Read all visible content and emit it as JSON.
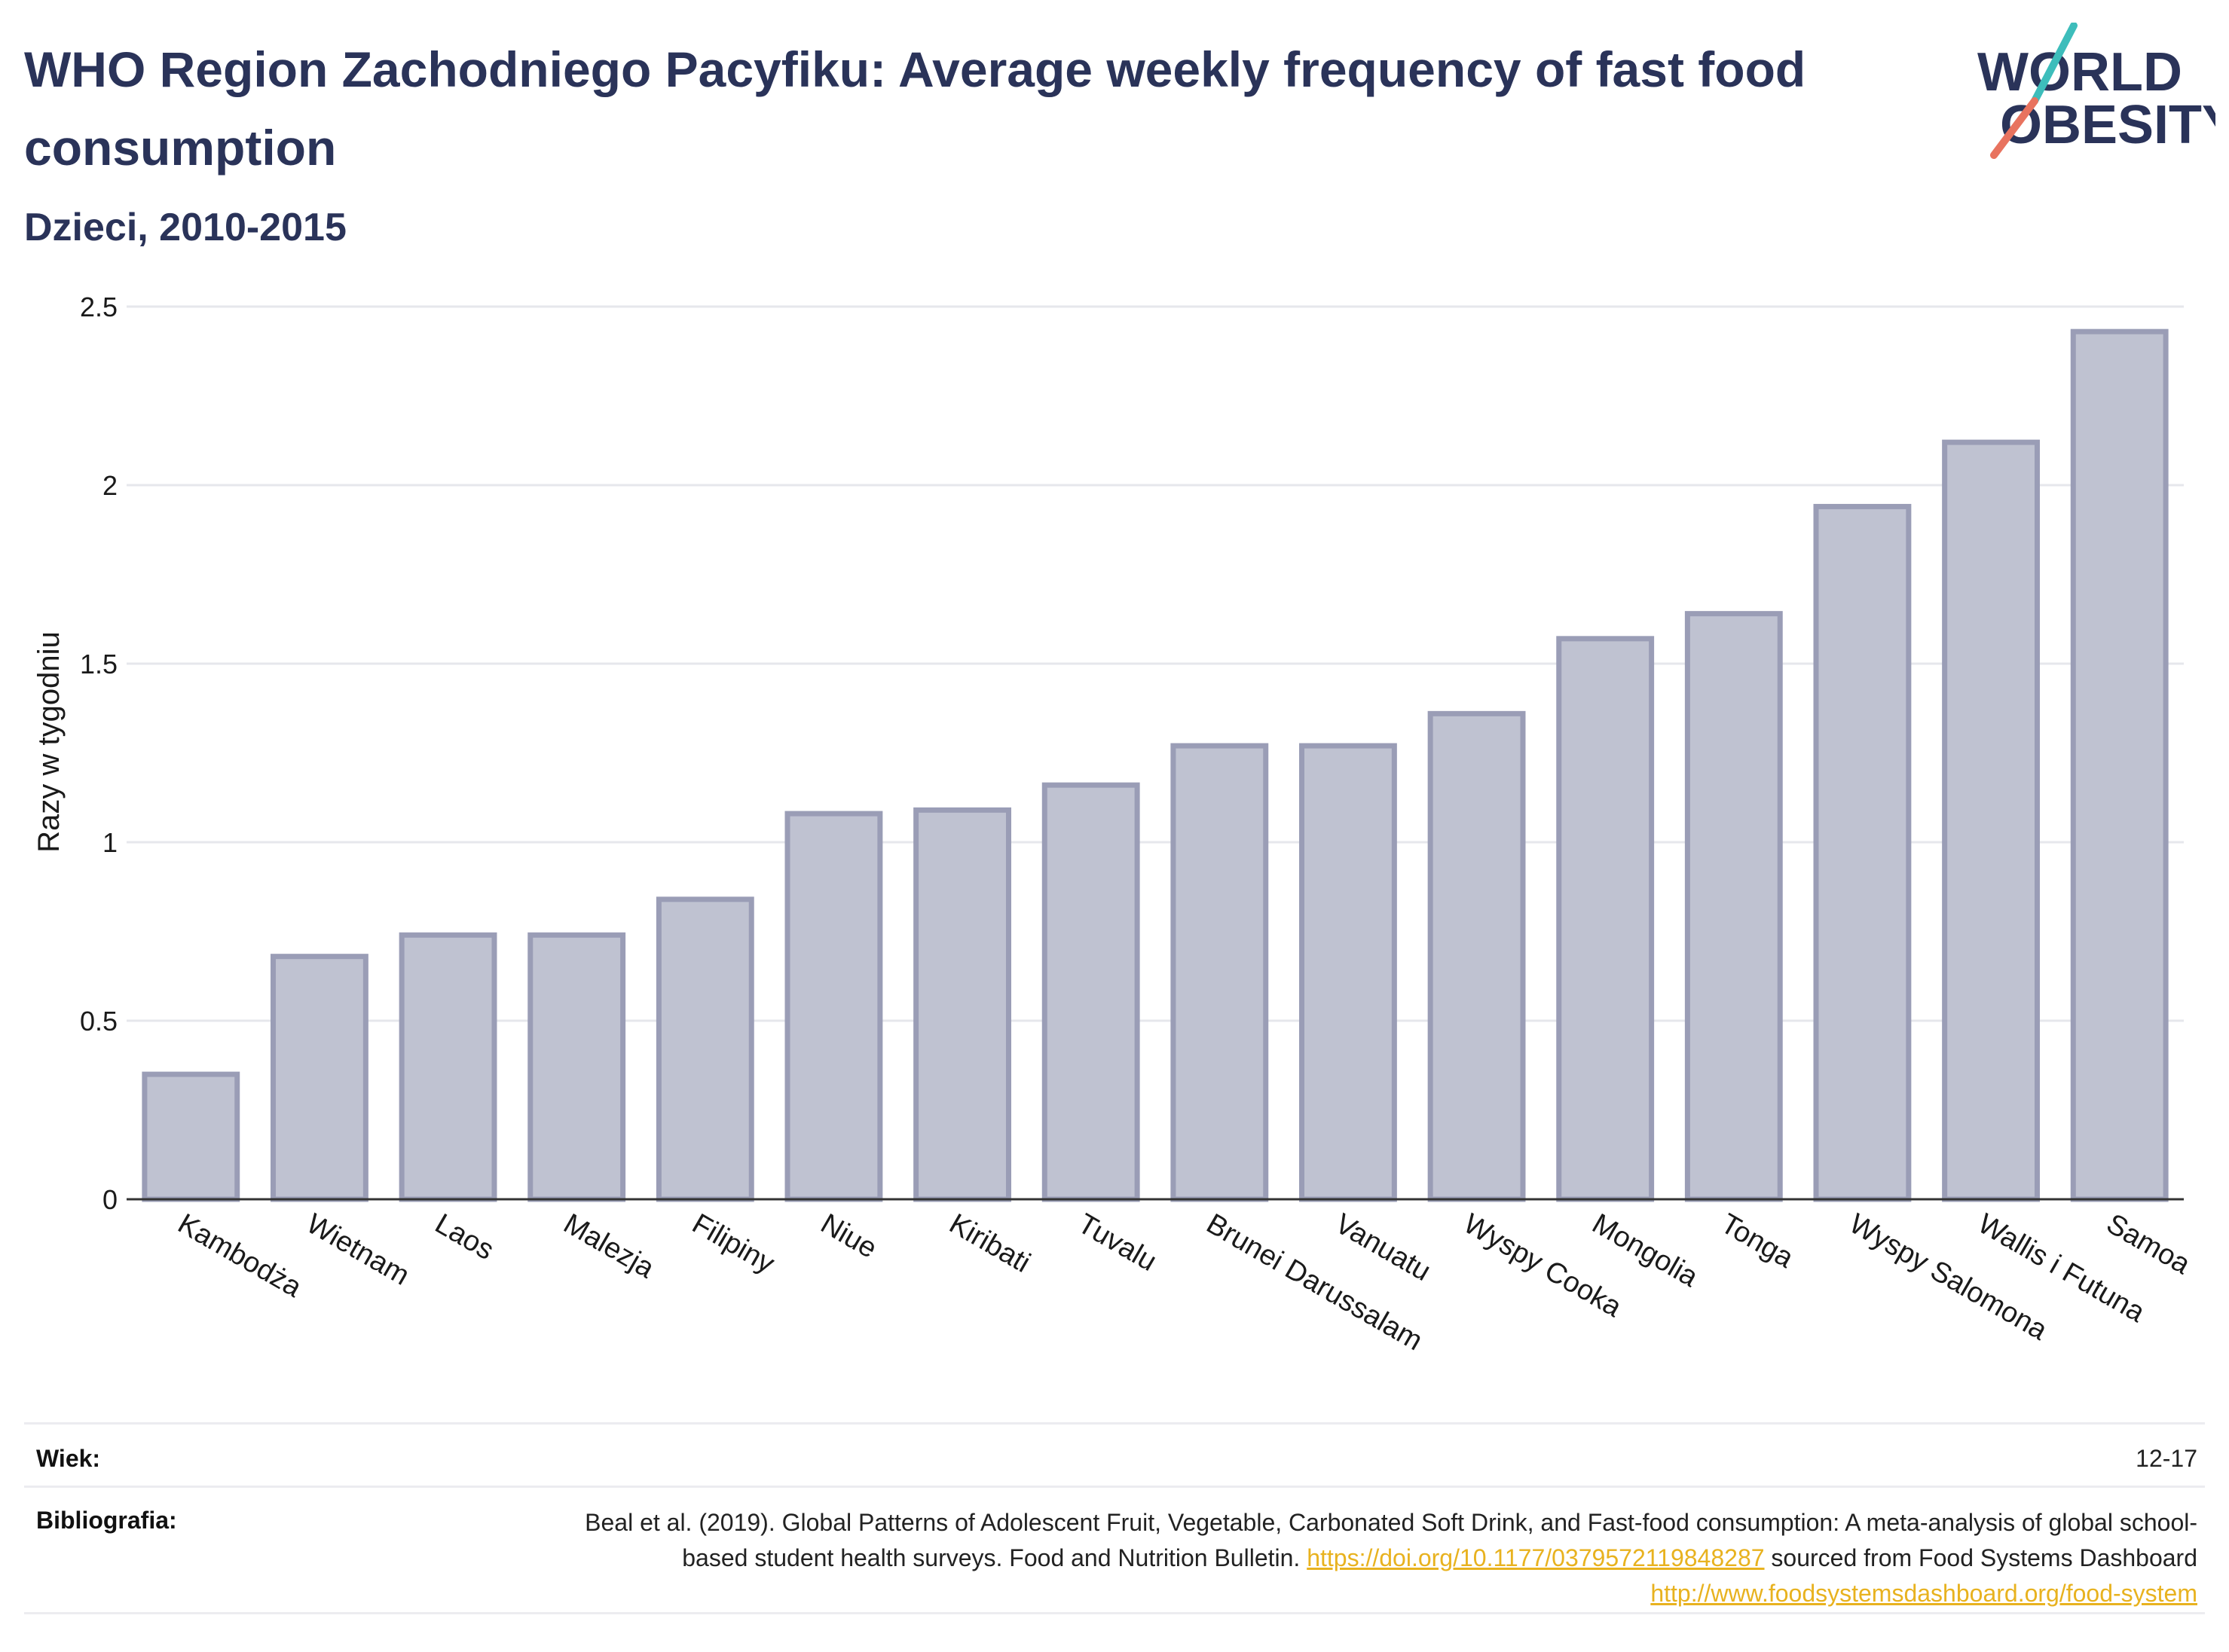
{
  "header": {
    "title": "WHO Region Zachodniego Pacyfiku: Average weekly frequency of fast food consumption",
    "subtitle": "Dzieci, 2010-2015"
  },
  "logo": {
    "line1": "WORLD",
    "line2": "OBESITY",
    "color_text": "#2a3359",
    "color_teal": "#3dbdbb",
    "color_coral": "#e8735f"
  },
  "chart_data": {
    "type": "bar",
    "ylabel": "Razy w tygodniu",
    "ylim": [
      0,
      2.5
    ],
    "yticks": [
      0,
      0.5,
      1,
      1.5,
      2,
      2.5
    ],
    "ytick_labels": [
      "0",
      "0.5",
      "1",
      "1.5",
      "2",
      "2.5"
    ],
    "grid": true,
    "categories": [
      "Kambodża",
      "Wietnam",
      "Laos",
      "Malezja",
      "Filipiny",
      "Niue",
      "Kiribati",
      "Tuvalu",
      "Brunei Darussalam",
      "Vanuatu",
      "Wyspy Cooka",
      "Mongolia",
      "Tonga",
      "Wyspy Salomona",
      "Wallis i Futuna",
      "Samoa"
    ],
    "values": [
      0.35,
      0.68,
      0.74,
      0.74,
      0.84,
      1.08,
      1.09,
      1.16,
      1.27,
      1.27,
      1.36,
      1.57,
      1.64,
      1.94,
      2.12,
      2.43
    ],
    "bar_fill": "#bfc2d1",
    "bar_stroke": "#9a9db6"
  },
  "footer": {
    "age_label": "Wiek:",
    "age_value": "12-17",
    "bib_label": "Bibliografia:",
    "bib_text_1": "Beal et al. (2019). Global Patterns of Adolescent Fruit, Vegetable, Carbonated Soft Drink, and Fast-food consumption: A meta-analysis of global school-based student health surveys. Food and Nutrition Bulletin.",
    "bib_link_1": "https://doi.org/10.1177/0379572119848287",
    "bib_text_2": "sourced from Food Systems Dashboard",
    "bib_link_2": "http://www.foodsystemsdashboard.org/food-system"
  }
}
